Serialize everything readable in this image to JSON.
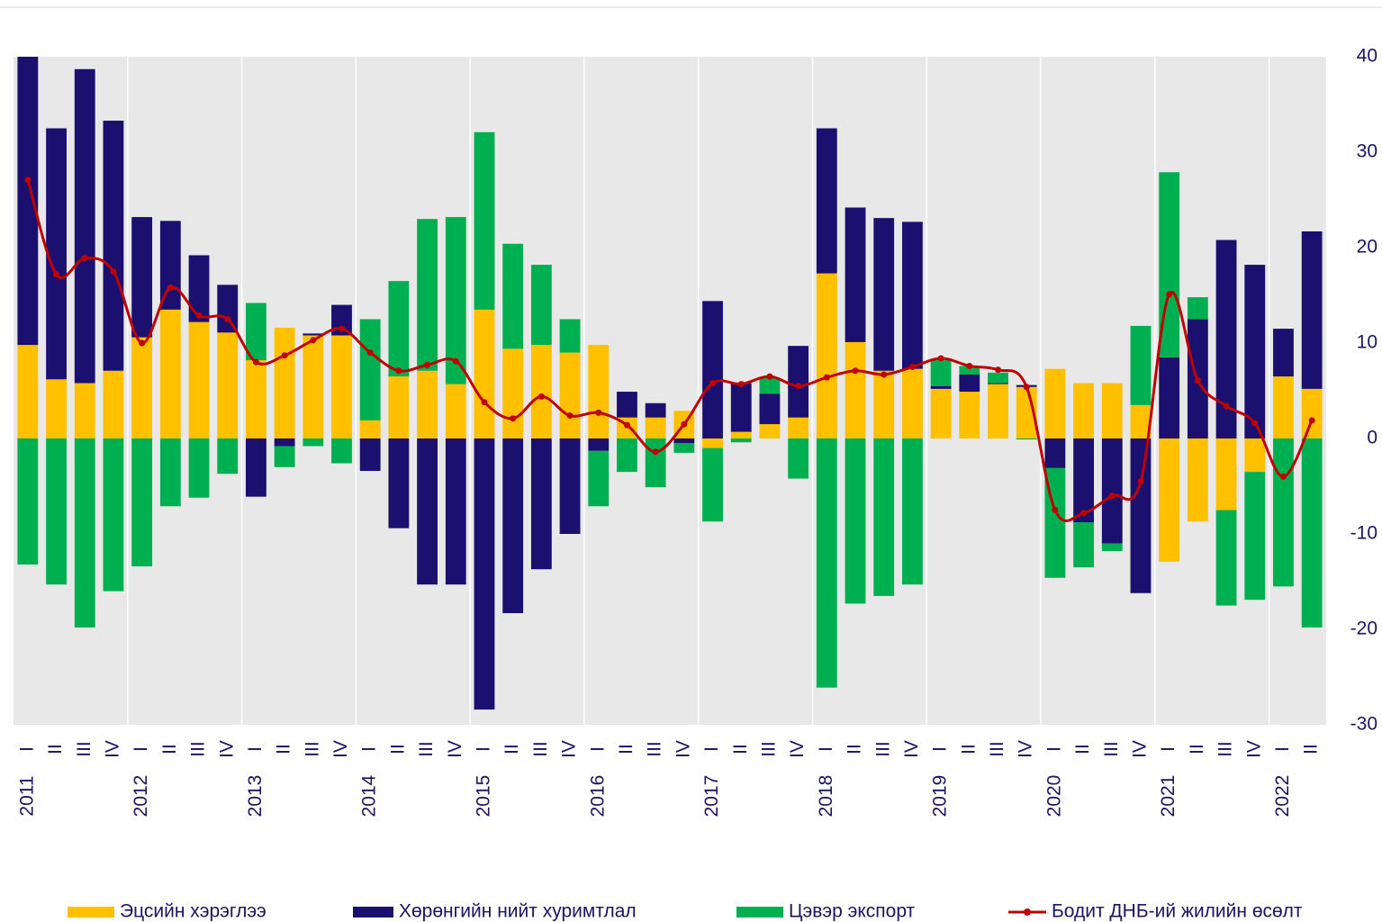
{
  "chart_data": {
    "type": "bar",
    "categories": [
      "I",
      "II",
      "III",
      "IV",
      "I",
      "II",
      "III",
      "IV",
      "I",
      "II",
      "III",
      "IV",
      "I",
      "II",
      "III",
      "IV",
      "I",
      "II",
      "III",
      "IV",
      "I",
      "II",
      "III",
      "IV",
      "I",
      "II",
      "III",
      "IV",
      "I",
      "II",
      "III",
      "IV",
      "I",
      "II",
      "III",
      "IV",
      "I",
      "II",
      "III",
      "IV",
      "I",
      "II",
      "III",
      "IV",
      "I",
      "II"
    ],
    "groups": [
      "2011",
      "2012",
      "2013",
      "2014",
      "2015",
      "2016",
      "2017",
      "2018",
      "2019",
      "2020",
      "2021",
      "2022"
    ],
    "series": [
      {
        "name": "Эцсийн хэрэглээ",
        "color": "#ffc000",
        "values": [
          9.8,
          6.2,
          5.8,
          7.1,
          10.6,
          13.5,
          12.2,
          11.1,
          8.2,
          11.6,
          10.8,
          10.8,
          1.9,
          6.5,
          7.1,
          5.7,
          13.5,
          9.4,
          9.8,
          9.0,
          9.8,
          2.2,
          2.2,
          2.9,
          -1.0,
          0.7,
          1.5,
          2.2,
          17.3,
          10.1,
          7.1,
          7.3,
          5.2,
          4.9,
          5.7,
          5.4,
          7.3,
          5.8,
          5.8,
          3.5,
          -12.9,
          -8.7,
          -7.5,
          -3.5,
          6.5,
          5.2
        ]
      },
      {
        "name": "Хөрөнгийн нийт хуримтлал",
        "color": "#1b1070",
        "values": [
          30.2,
          26.3,
          32.9,
          26.2,
          12.6,
          9.3,
          7.0,
          5.0,
          -6.1,
          -0.8,
          0.2,
          3.2,
          -3.4,
          -9.4,
          -15.3,
          -15.3,
          -28.4,
          -18.3,
          -13.7,
          -10.0,
          -1.3,
          2.7,
          1.5,
          -0.5,
          14.4,
          5.1,
          3.2,
          7.5,
          15.2,
          14.1,
          16.0,
          15.4,
          0.3,
          1.8,
          0.1,
          0.2,
          -3.1,
          -8.8,
          -11.0,
          -16.2,
          8.5,
          12.5,
          20.8,
          18.2,
          5.0,
          16.5
        ]
      },
      {
        "name": "Цэвэр экспорт",
        "color": "#00b050",
        "values": [
          -13.2,
          -15.3,
          -19.8,
          -16.0,
          -13.4,
          -7.1,
          -6.2,
          -3.7,
          6.0,
          -2.2,
          -0.8,
          -2.6,
          10.6,
          10.0,
          15.9,
          17.5,
          18.6,
          11.0,
          8.4,
          3.5,
          -5.8,
          -3.5,
          -5.1,
          -1.0,
          -7.7,
          -0.4,
          1.7,
          -4.2,
          -26.1,
          -17.3,
          -16.5,
          -15.3,
          2.7,
          0.9,
          1.1,
          -0.1,
          -11.5,
          -4.7,
          -0.8,
          8.3,
          19.4,
          2.3,
          -10.0,
          -13.4,
          -15.5,
          -19.8
        ]
      },
      {
        "name": "Бодит ДНБ-ий жилийн өсөлт",
        "color": "#c00000",
        "type": "line",
        "values": [
          27.1,
          17.2,
          18.9,
          17.5,
          10.0,
          15.8,
          12.9,
          12.5,
          8.0,
          8.7,
          10.3,
          11.5,
          9.0,
          7.1,
          7.7,
          8.1,
          3.8,
          2.1,
          4.4,
          2.4,
          2.7,
          1.4,
          -1.4,
          1.5,
          5.8,
          5.7,
          6.5,
          5.5,
          6.4,
          7.1,
          6.7,
          7.5,
          8.4,
          7.6,
          7.2,
          5.4,
          -7.5,
          -7.8,
          -6.0,
          -4.5,
          15.1,
          6.1,
          3.4,
          1.6,
          -4.0,
          1.9
        ]
      }
    ],
    "ylim": [
      -30,
      40
    ],
    "yticks": [
      40,
      30,
      20,
      10,
      0,
      -10,
      -20,
      -30
    ],
    "grid": true,
    "legend": "bottom"
  }
}
